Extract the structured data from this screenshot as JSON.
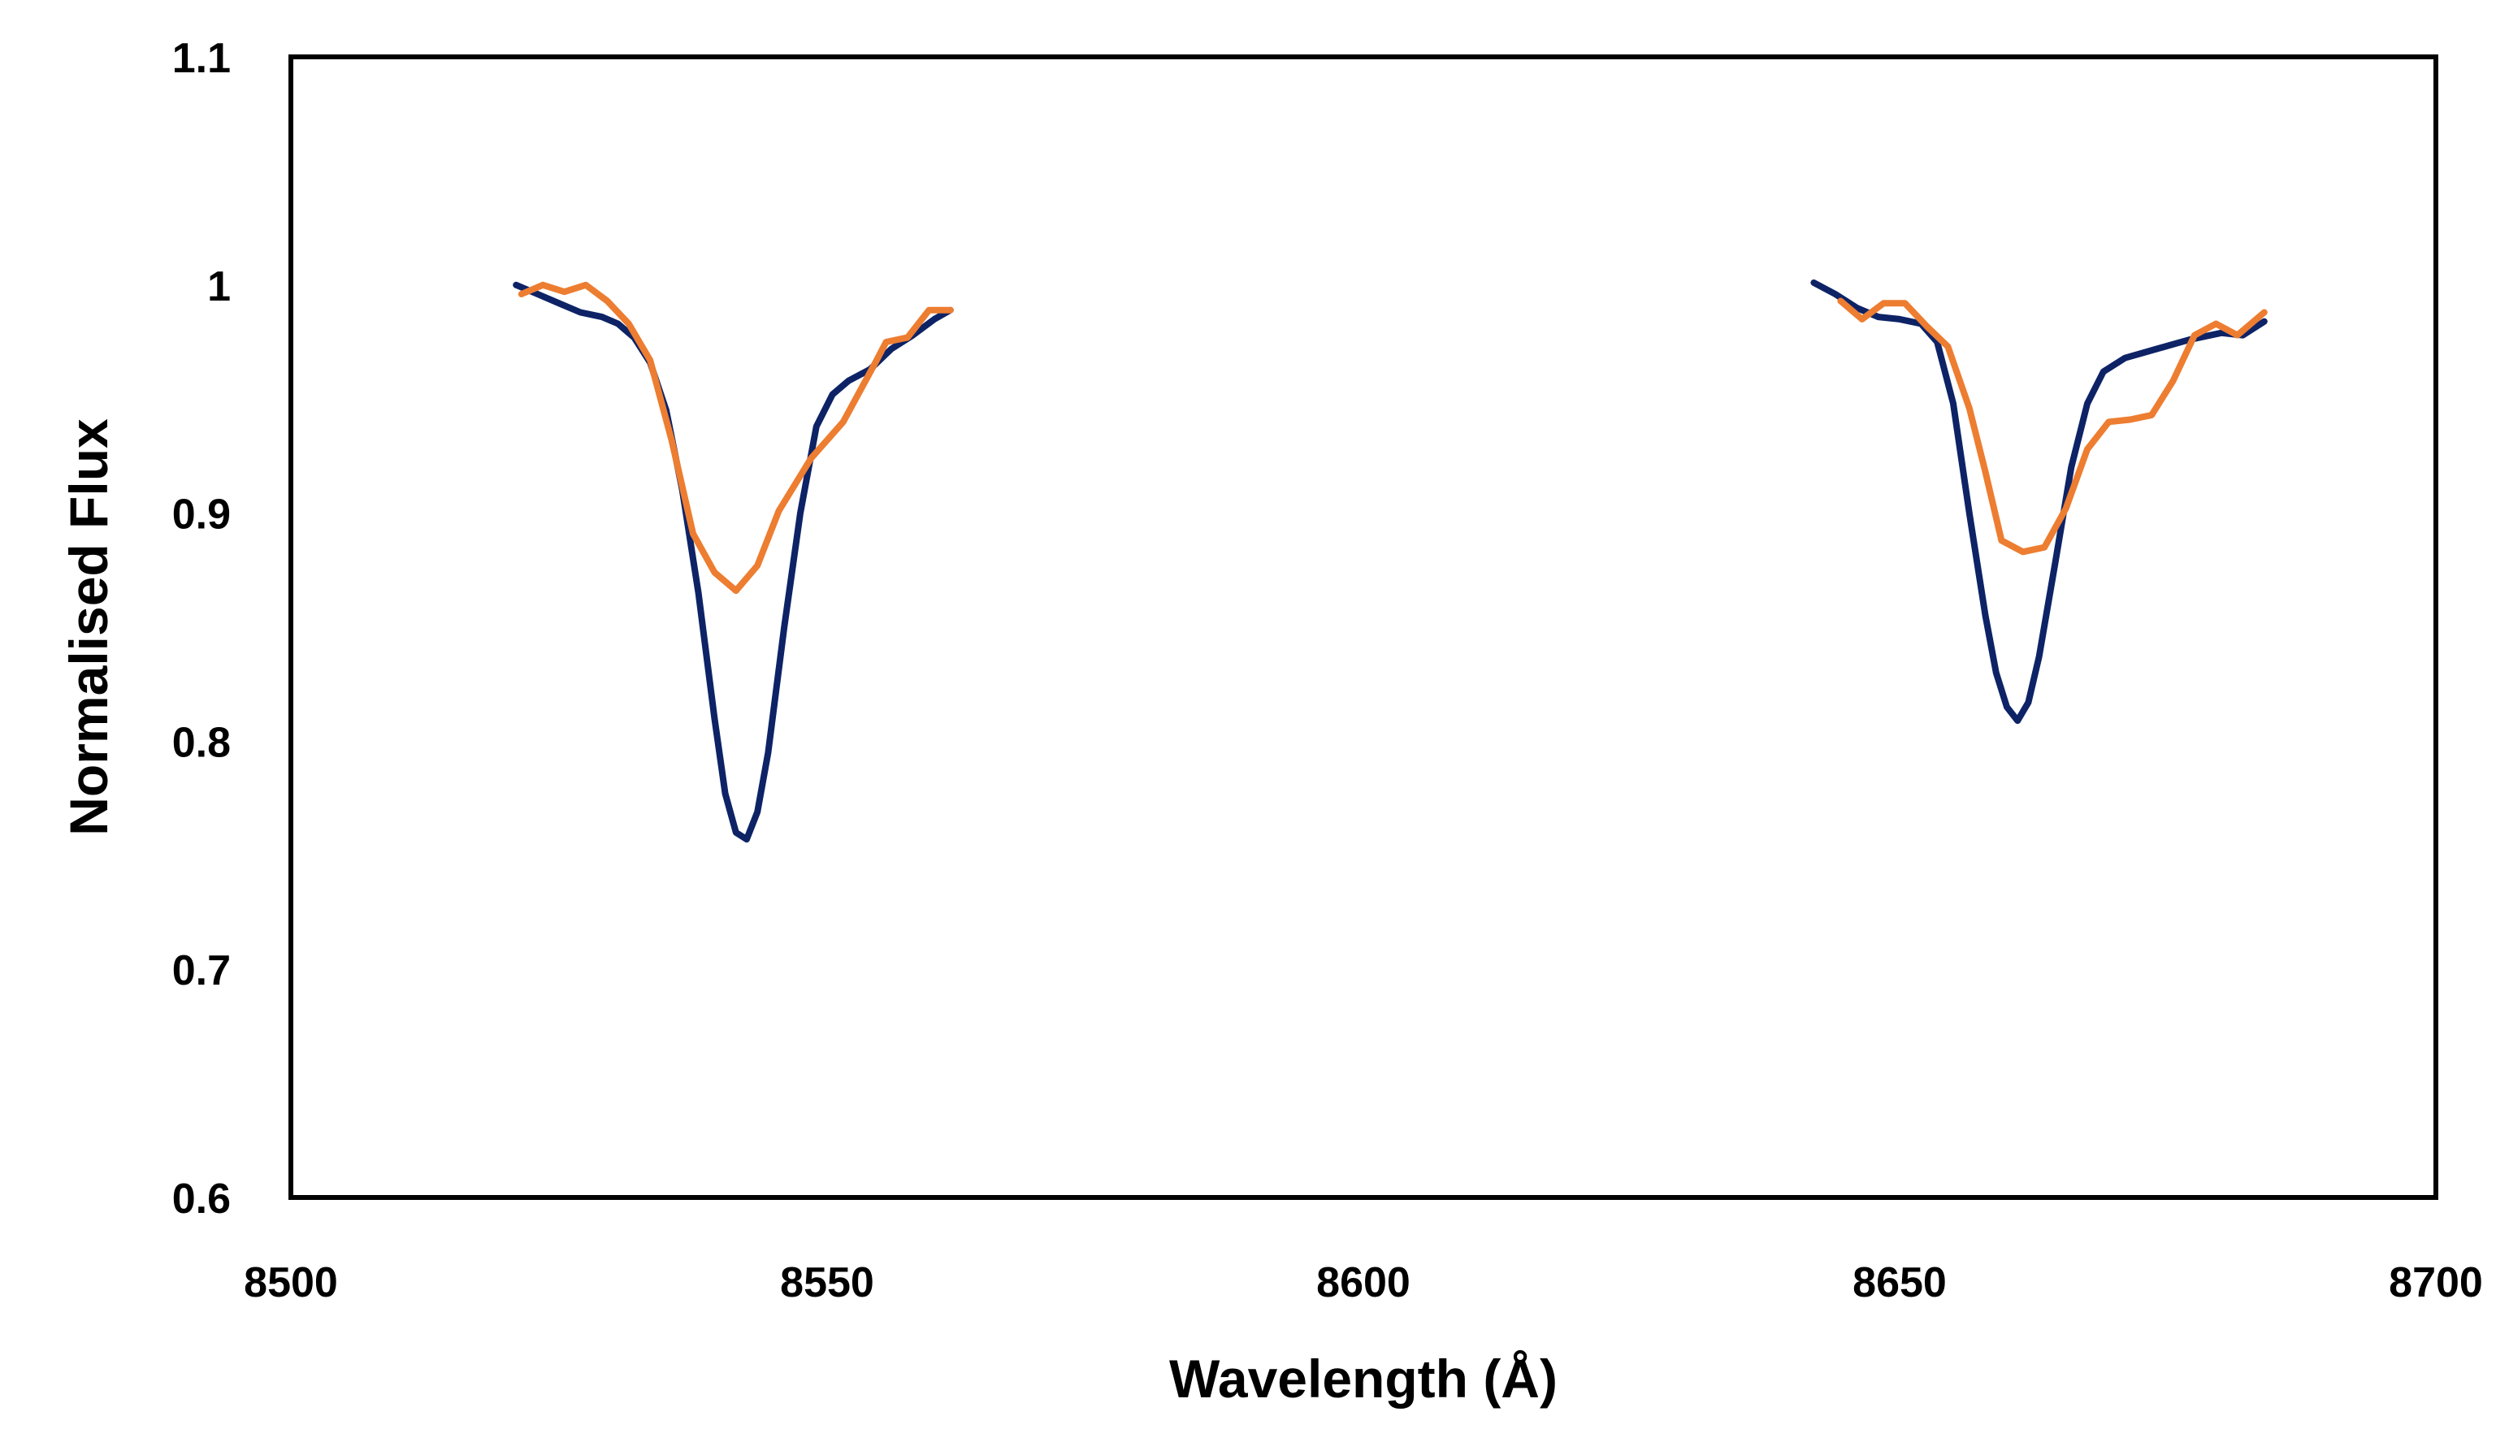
{
  "chart_data": {
    "type": "line",
    "title": "",
    "xlabel": "Wavelength (Å)",
    "ylabel": "Normalised Flux",
    "xlim": [
      8500,
      8700
    ],
    "ylim": [
      0.6,
      1.1
    ],
    "x_ticks": [
      "8500",
      "8550",
      "8600",
      "8650",
      "8700"
    ],
    "y_ticks": [
      "1.1",
      "1",
      "0.9",
      "0.8",
      "0.7",
      "0.6"
    ],
    "grid": false,
    "legend": "none",
    "series": [
      {
        "color": "#0d2366",
        "segments": [
          [
            [
              8521.0,
              1.0
            ],
            [
              8523.0,
              0.996
            ],
            [
              8525.0,
              0.992
            ],
            [
              8527.0,
              0.988
            ],
            [
              8529.0,
              0.986
            ],
            [
              8530.5,
              0.983
            ],
            [
              8532.0,
              0.977
            ],
            [
              8533.5,
              0.966
            ],
            [
              8535.0,
              0.945
            ],
            [
              8536.5,
              0.91
            ],
            [
              8538.0,
              0.865
            ],
            [
              8539.5,
              0.81
            ],
            [
              8540.5,
              0.777
            ],
            [
              8541.5,
              0.76
            ],
            [
              8542.5,
              0.757
            ],
            [
              8543.5,
              0.769
            ],
            [
              8544.5,
              0.795
            ],
            [
              8546.0,
              0.85
            ],
            [
              8547.5,
              0.9
            ],
            [
              8549.0,
              0.938
            ],
            [
              8550.5,
              0.952
            ],
            [
              8552.0,
              0.958
            ],
            [
              8554.0,
              0.963
            ],
            [
              8556.0,
              0.972
            ],
            [
              8558.0,
              0.978
            ],
            [
              8560.0,
              0.985
            ],
            [
              8561.5,
              0.989
            ]
          ],
          [
            [
              8642.0,
              1.001
            ],
            [
              8644.0,
              0.996
            ],
            [
              8646.0,
              0.99
            ],
            [
              8648.0,
              0.986
            ],
            [
              8650.0,
              0.985
            ],
            [
              8652.0,
              0.983
            ],
            [
              8653.5,
              0.975
            ],
            [
              8655.0,
              0.948
            ],
            [
              8656.5,
              0.9
            ],
            [
              8658.0,
              0.855
            ],
            [
              8659.0,
              0.83
            ],
            [
              8660.0,
              0.815
            ],
            [
              8661.0,
              0.809
            ],
            [
              8662.0,
              0.817
            ],
            [
              8663.0,
              0.837
            ],
            [
              8664.5,
              0.878
            ],
            [
              8666.0,
              0.92
            ],
            [
              8667.5,
              0.948
            ],
            [
              8669.0,
              0.962
            ],
            [
              8671.0,
              0.968
            ],
            [
              8674.0,
              0.972
            ],
            [
              8677.0,
              0.976
            ],
            [
              8680.0,
              0.979
            ],
            [
              8682.0,
              0.978
            ],
            [
              8684.0,
              0.984
            ]
          ]
        ]
      },
      {
        "color": "#ed7d31",
        "segments": [
          [
            [
              8521.5,
              0.996
            ],
            [
              8523.5,
              1.0
            ],
            [
              8525.5,
              0.997
            ],
            [
              8527.5,
              1.0
            ],
            [
              8529.5,
              0.993
            ],
            [
              8531.5,
              0.983
            ],
            [
              8533.5,
              0.967
            ],
            [
              8535.5,
              0.932
            ],
            [
              8537.5,
              0.891
            ],
            [
              8539.5,
              0.874
            ],
            [
              8541.5,
              0.866
            ],
            [
              8543.5,
              0.877
            ],
            [
              8545.5,
              0.901
            ],
            [
              8548.5,
              0.924
            ],
            [
              8551.5,
              0.94
            ],
            [
              8554.5,
              0.966
            ],
            [
              8555.5,
              0.975
            ],
            [
              8557.5,
              0.977
            ],
            [
              8559.5,
              0.989
            ],
            [
              8561.5,
              0.989
            ]
          ],
          [
            [
              8644.5,
              0.993
            ],
            [
              8646.5,
              0.985
            ],
            [
              8648.5,
              0.992
            ],
            [
              8650.5,
              0.992
            ],
            [
              8652.5,
              0.982
            ],
            [
              8654.5,
              0.973
            ],
            [
              8656.5,
              0.946
            ],
            [
              8658.0,
              0.918
            ],
            [
              8659.5,
              0.888
            ],
            [
              8661.5,
              0.883
            ],
            [
              8663.5,
              0.885
            ],
            [
              8665.5,
              0.902
            ],
            [
              8667.5,
              0.928
            ],
            [
              8669.5,
              0.94
            ],
            [
              8671.5,
              0.941
            ],
            [
              8673.5,
              0.943
            ],
            [
              8675.5,
              0.958
            ],
            [
              8677.5,
              0.978
            ],
            [
              8679.5,
              0.983
            ],
            [
              8681.5,
              0.978
            ],
            [
              8684.0,
              0.988
            ]
          ]
        ]
      }
    ]
  }
}
